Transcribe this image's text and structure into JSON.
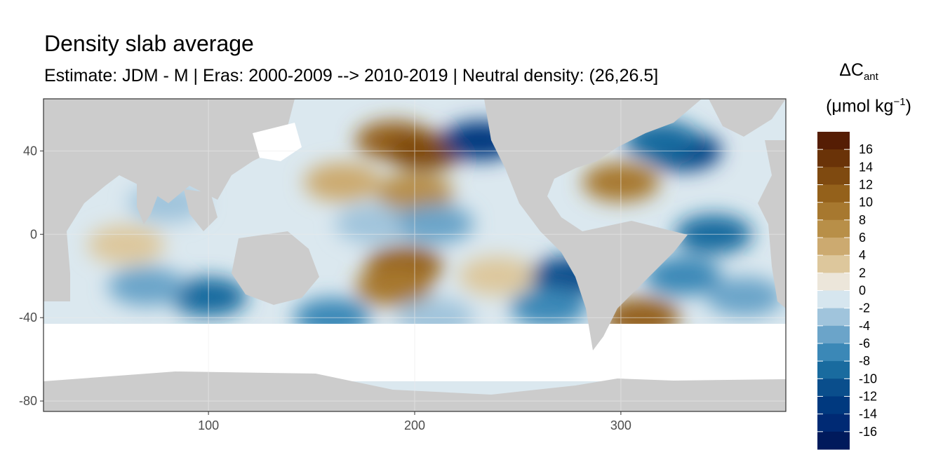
{
  "chart_data": {
    "type": "heatmap",
    "title": "Density slab average",
    "subtitle": "Estimate: JDM - M | Eras: 2000-2009 --> 2010-2019 | Neutral density: (26,26.5]",
    "legend": {
      "title_main": "ΔC",
      "title_sub": "ant",
      "unit_main": "(μmol kg",
      "unit_sup": "−1",
      "unit_close": ")",
      "placement": "right",
      "labels": [
        "16",
        "14",
        "12",
        "10",
        "8",
        "6",
        "4",
        "2",
        "0",
        "-2",
        "-4",
        "-6",
        "-8",
        "-10",
        "-12",
        "-14",
        "-16"
      ],
      "bins": [
        -18,
        -16,
        -14,
        -12,
        -10,
        -8,
        -6,
        -4,
        -2,
        0,
        2,
        4,
        6,
        8,
        10,
        12,
        14,
        16,
        18
      ],
      "colors": [
        "#001a5c",
        "#002a74",
        "#00397f",
        "#0a4e8c",
        "#196b9f",
        "#3b88b7",
        "#6ba4c9",
        "#a0c4dc",
        "#d6e6ef",
        "#ece6da",
        "#ddc79c",
        "#ccaa70",
        "#b88f48",
        "#a7782f",
        "#94611b",
        "#7f4a10",
        "#6a3308",
        "#551d04"
      ]
    },
    "x_ticks": [
      100,
      200,
      300
    ],
    "y_ticks": [
      40,
      0,
      -40,
      -80
    ],
    "xlim": [
      20,
      380
    ],
    "ylim": [
      -85,
      65
    ],
    "grid": true,
    "land_color": "#cccccc",
    "regions": [
      {
        "lon": 190,
        "lat": 45,
        "value": 10
      },
      {
        "lon": 205,
        "lat": 40,
        "value": 12
      },
      {
        "lon": 232,
        "lat": 45,
        "value": -14
      },
      {
        "lon": 200,
        "lat": 20,
        "value": 6
      },
      {
        "lon": 165,
        "lat": 25,
        "value": 4
      },
      {
        "lon": 180,
        "lat": 5,
        "value": -4
      },
      {
        "lon": 210,
        "lat": 5,
        "value": -6
      },
      {
        "lon": 195,
        "lat": -15,
        "value": 10
      },
      {
        "lon": 190,
        "lat": -25,
        "value": 8
      },
      {
        "lon": 240,
        "lat": -20,
        "value": 2
      },
      {
        "lon": 275,
        "lat": -20,
        "value": -12
      },
      {
        "lon": 265,
        "lat": -35,
        "value": -8
      },
      {
        "lon": 160,
        "lat": -40,
        "value": -8
      },
      {
        "lon": 210,
        "lat": -40,
        "value": -4
      },
      {
        "lon": 100,
        "lat": -30,
        "value": -10
      },
      {
        "lon": 70,
        "lat": -25,
        "value": -6
      },
      {
        "lon": 60,
        "lat": -5,
        "value": 2
      },
      {
        "lon": 80,
        "lat": 15,
        "value": -4
      },
      {
        "lon": 330,
        "lat": 40,
        "value": -14
      },
      {
        "lon": 320,
        "lat": 45,
        "value": -10
      },
      {
        "lon": 300,
        "lat": 25,
        "value": 8
      },
      {
        "lon": 345,
        "lat": 0,
        "value": -10
      },
      {
        "lon": 330,
        "lat": -20,
        "value": -8
      },
      {
        "lon": 310,
        "lat": -40,
        "value": 10
      },
      {
        "lon": 360,
        "lat": -30,
        "value": -6
      }
    ]
  }
}
